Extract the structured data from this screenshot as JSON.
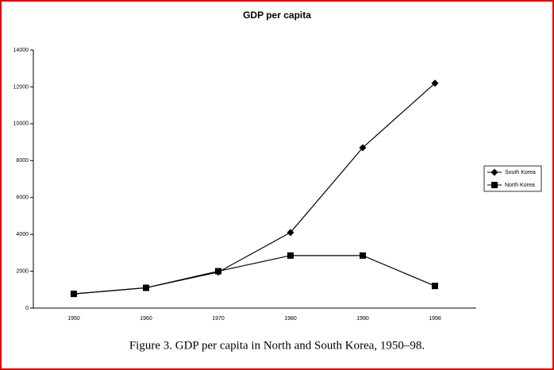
{
  "chart_data": {
    "type": "line",
    "title": "GDP per capita",
    "caption": "Figure 3.  GDP per capita in North and South Korea, 1950–98.",
    "categories": [
      "1950",
      "1960",
      "1970",
      "1980",
      "1990",
      "1998"
    ],
    "series": [
      {
        "name": "South Korea",
        "color": "#000000",
        "marker": "diamond",
        "values": [
          770,
          1100,
          1950,
          4100,
          8700,
          12200
        ]
      },
      {
        "name": "North Korea",
        "color": "#000000",
        "marker": "square",
        "values": [
          770,
          1100,
          2000,
          2850,
          2850,
          1200
        ]
      }
    ],
    "ylim": [
      0,
      14000
    ],
    "yticks": [
      0,
      2000,
      4000,
      6000,
      8000,
      10000,
      12000,
      14000
    ],
    "grid": false
  }
}
